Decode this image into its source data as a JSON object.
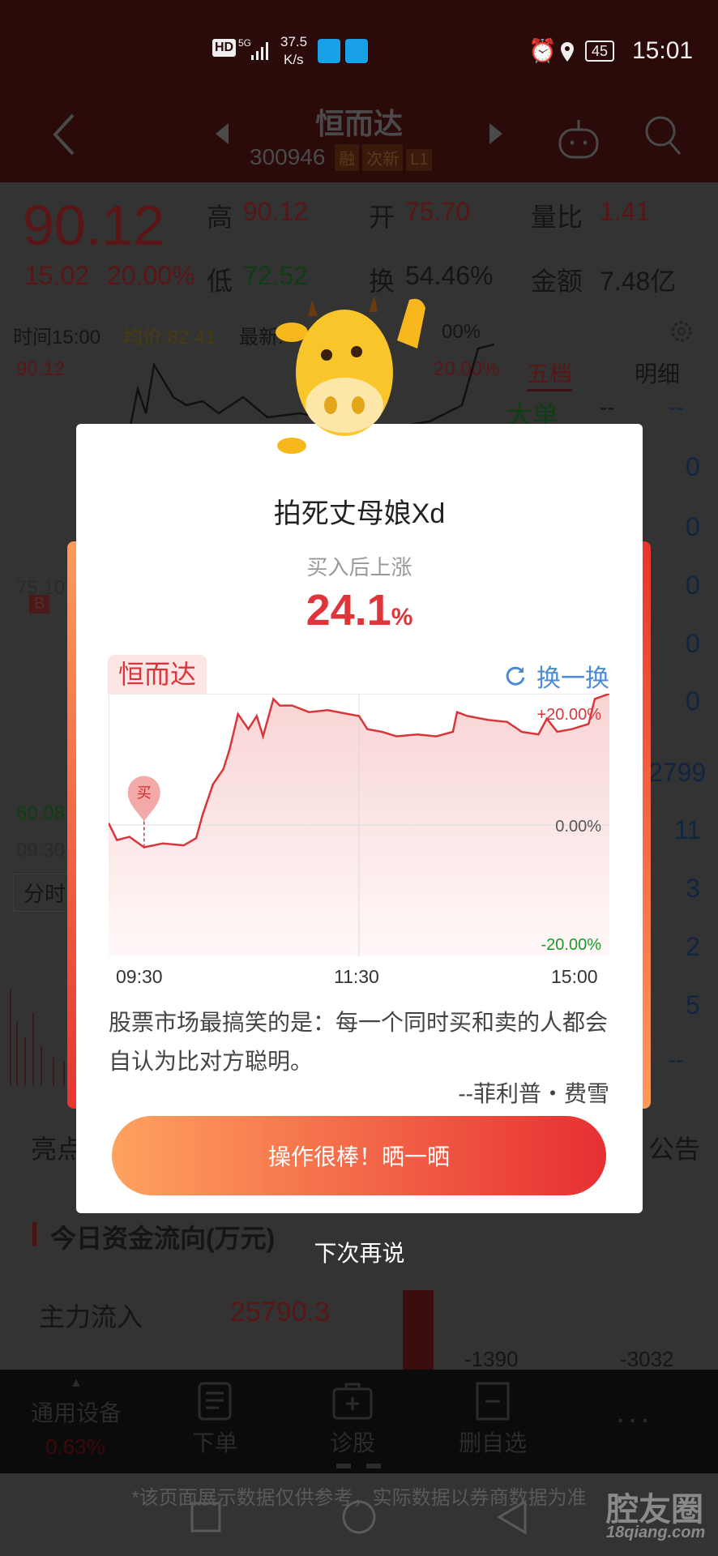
{
  "status_bar": {
    "hd": "HD",
    "network": "5G",
    "speed_top": "37.5",
    "speed_unit": "K/s",
    "battery": "45",
    "time": "15:01"
  },
  "header": {
    "title": "恒而达",
    "code": "300946",
    "tags": [
      "融",
      "次新",
      "L1"
    ]
  },
  "quote": {
    "price": "90.12",
    "change": "15.02",
    "change_pct": "20.00%",
    "high_label": "高",
    "high": "90.12",
    "open_label": "开",
    "open": "75.70",
    "ratio_label": "量比",
    "ratio": "1.41",
    "low_label": "低",
    "low": "72.52",
    "turnover_label": "换",
    "turnover": "54.46%",
    "amount_label": "金额",
    "amount": "7.48亿"
  },
  "bg_chart": {
    "time": "时间15:00",
    "avg": "均价:82.41",
    "latest": "最新:",
    "pct_right": "20.00%",
    "pct_right2": "00%",
    "y_top": "90.12",
    "y_mid": "75.10",
    "y_bot": "60.08",
    "t_start": "09:30",
    "tab_fenshi": "分时",
    "buy_marker": "B"
  },
  "order_panel": {
    "tab1": "五档",
    "tab2": "明细",
    "big_order": "大单",
    "dash1": "--",
    "dash2": "--",
    "values": [
      "0",
      "0",
      "0",
      "0",
      "0"
    ],
    "vol": "2799",
    "v2": "11",
    "v3": "3",
    "v4": "2",
    "v5": "5",
    "v6": "--"
  },
  "section_tabs": {
    "left": "亮点",
    "right": "公告"
  },
  "fund_flow": {
    "title": "今日资金流向(万元)",
    "main_in_label": "主力流入",
    "main_in": "25790.3",
    "bar1": "-1390",
    "bar2": "-3032"
  },
  "toolbar": {
    "sector": "通用设备",
    "sector_pct": "0.63%",
    "order": "下单",
    "diagnose": "诊股",
    "remove": "删自选",
    "more": "..."
  },
  "disclaimer": "*该页面展示数据仅供参考，实际数据以券商数据为准",
  "watermark": {
    "text": "腔友圈",
    "url": "18qiang.com"
  },
  "modal": {
    "user": "拍死丈母娘Xd",
    "gain_label": "买入后上涨",
    "gain_value": "24.1",
    "gain_unit": "%",
    "stock_tag": "恒而达",
    "refresh": "换一换",
    "quote": "股票市场最搞笑的是：每一个同时买和卖的人都会自认为比对方聪明。",
    "author": "--菲利普・费雪",
    "cta": "操作很棒！晒一晒",
    "dismiss": "下次再说",
    "colors": {
      "accent": "#e0343a",
      "refresh": "#4a8ad6",
      "down": "#1a9a2a"
    }
  },
  "chart_data": {
    "type": "area",
    "x_ticks": [
      "09:30",
      "11:30",
      "15:00"
    ],
    "y_ticks": [
      "+20.00%",
      "0.00%",
      "-20.00%"
    ],
    "ylim": [
      -20,
      20
    ],
    "buy_marker": {
      "time": "09:47",
      "label": "买"
    },
    "grid": true,
    "series": [
      {
        "points": [
          [
            "09:30",
            0.3
          ],
          [
            "09:34",
            -2.3
          ],
          [
            "09:40",
            -1.8
          ],
          [
            "09:47",
            -3.4
          ],
          [
            "09:56",
            -2.8
          ],
          [
            "10:06",
            -3.1
          ],
          [
            "10:12",
            -2.0
          ],
          [
            "10:15",
            1.5
          ],
          [
            "10:20",
            6.2
          ],
          [
            "10:25",
            8.5
          ],
          [
            "10:28",
            11.5
          ],
          [
            "10:32",
            16.9
          ],
          [
            "10:37",
            14.6
          ],
          [
            "10:41",
            16.6
          ],
          [
            "10:44",
            13.5
          ],
          [
            "10:49",
            19.2
          ],
          [
            "10:52",
            18.2
          ],
          [
            "10:58",
            18.2
          ],
          [
            "11:06",
            17.2
          ],
          [
            "11:15",
            17.5
          ],
          [
            "11:25",
            16.9
          ],
          [
            "11:30",
            16.6
          ],
          [
            "13:04",
            14.6
          ],
          [
            "13:11",
            14.2
          ],
          [
            "13:18",
            13.5
          ],
          [
            "13:28",
            13.8
          ],
          [
            "13:37",
            13.5
          ],
          [
            "13:45",
            14.2
          ],
          [
            "13:47",
            17.2
          ],
          [
            "13:52",
            16.6
          ],
          [
            "14:02",
            16.0
          ],
          [
            "14:11",
            15.7
          ],
          [
            "14:18",
            14.2
          ],
          [
            "14:26",
            13.8
          ],
          [
            "14:30",
            16.2
          ],
          [
            "14:35",
            14.2
          ],
          [
            "14:42",
            14.6
          ],
          [
            "14:50",
            15.4
          ],
          [
            "14:53",
            19.2
          ],
          [
            "15:00",
            20.0
          ]
        ]
      }
    ]
  }
}
